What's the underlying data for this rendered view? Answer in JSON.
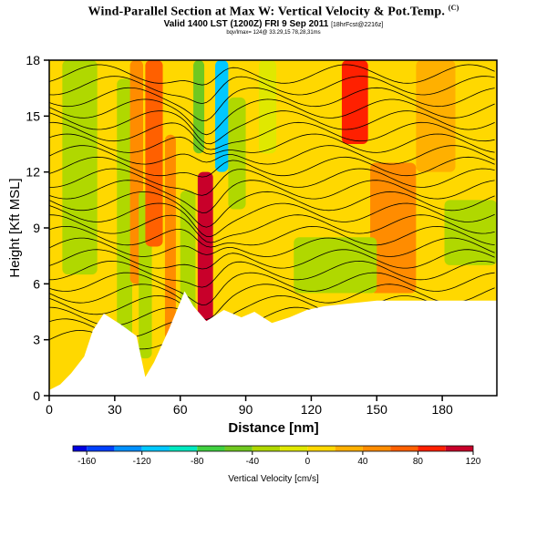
{
  "header": {
    "title": "Wind-Parallel Section at Max W: Vertical Velocity & Pot.Temp.",
    "title_mark": "(C)",
    "valid_line": "Valid 1400 LST (1200Z) FRI 9 Sep 2011",
    "forecast_tag": "[18hrFcst@2216z]",
    "info_line": "bqv/lmax= 124@ 33.29,15 78,28,31ms"
  },
  "chart_data": {
    "type": "heatmap",
    "title": "Wind-Parallel Section at Max W: Vertical Velocity & Pot.Temp.",
    "xlabel": "Distance [nm]",
    "ylabel": "Height [Kft MSL]",
    "xlim": [
      0,
      205
    ],
    "ylim": [
      0,
      18
    ],
    "x_ticks": [
      "0",
      "30",
      "60",
      "90",
      "120",
      "150",
      "180"
    ],
    "y_ticks": [
      "0",
      "3",
      "6",
      "9",
      "12",
      "15",
      "18"
    ],
    "colorbar": {
      "label": "Vertical Velocity [cm/s]",
      "tick_labels": [
        "-160",
        "-120",
        "-80",
        "-40",
        "0",
        "40",
        "80",
        "120"
      ],
      "range": [
        -170,
        120
      ],
      "levels": [
        -170,
        -160,
        -140,
        -120,
        -100,
        -80,
        -60,
        -40,
        -20,
        0,
        20,
        40,
        60,
        80,
        100,
        120
      ],
      "colors": [
        "#0000e0",
        "#0040ff",
        "#0090ff",
        "#00c8ff",
        "#00e8c0",
        "#40d040",
        "#70c820",
        "#b0d800",
        "#e0e800",
        "#ffd800",
        "#ffb000",
        "#ff8c00",
        "#ff6000",
        "#ff2000",
        "#c8002a"
      ]
    },
    "bands": [
      {
        "x": [
          6,
          22
        ],
        "y": [
          6.5,
          18
        ],
        "value": -25
      },
      {
        "x": [
          31,
          38
        ],
        "y": [
          1,
          17
        ],
        "value": -40
      },
      {
        "x": [
          37,
          43
        ],
        "y": [
          6,
          18
        ],
        "value": 55
      },
      {
        "x": [
          41,
          47
        ],
        "y": [
          2,
          11
        ],
        "value": -35
      },
      {
        "x": [
          44,
          52
        ],
        "y": [
          8,
          18
        ],
        "value": 75
      },
      {
        "x": [
          53,
          58
        ],
        "y": [
          3,
          14
        ],
        "value": 40
      },
      {
        "x": [
          60,
          67
        ],
        "y": [
          4,
          11
        ],
        "value": -40
      },
      {
        "x": [
          66,
          71
        ],
        "y": [
          13,
          18
        ],
        "value": -55
      },
      {
        "x": [
          68,
          75
        ],
        "y": [
          4,
          12
        ],
        "value": 100
      },
      {
        "x": [
          76,
          82
        ],
        "y": [
          12,
          18
        ],
        "value": -110
      },
      {
        "x": [
          82,
          90
        ],
        "y": [
          10,
          16
        ],
        "value": -25
      },
      {
        "x": [
          96,
          104
        ],
        "y": [
          13,
          18
        ],
        "value": -15
      },
      {
        "x": [
          134,
          146
        ],
        "y": [
          13.5,
          18
        ],
        "value": 90
      },
      {
        "x": [
          147,
          168
        ],
        "y": [
          5.5,
          12.5
        ],
        "value": 45
      },
      {
        "x": [
          168,
          186
        ],
        "y": [
          12,
          18
        ],
        "value": 35
      },
      {
        "x": [
          181,
          205
        ],
        "y": [
          7,
          10.5
        ],
        "value": -40
      },
      {
        "x": [
          112,
          150
        ],
        "y": [
          5.5,
          8.5
        ],
        "value": -30
      },
      {
        "x": [
          0,
          30
        ],
        "y": [
          0,
          5.5
        ],
        "value": 15
      }
    ],
    "terrain": [
      [
        0,
        0.3
      ],
      [
        5,
        0.6
      ],
      [
        10,
        1.2
      ],
      [
        16,
        2.1
      ],
      [
        20,
        3.5
      ],
      [
        25,
        4.4
      ],
      [
        33,
        3.8
      ],
      [
        40,
        3.2
      ],
      [
        44,
        1.0
      ],
      [
        48,
        1.8
      ],
      [
        55,
        3.6
      ],
      [
        62,
        5.6
      ],
      [
        66,
        4.8
      ],
      [
        72,
        4.0
      ],
      [
        80,
        4.6
      ],
      [
        88,
        4.2
      ],
      [
        94,
        4.5
      ],
      [
        102,
        3.9
      ],
      [
        110,
        4.2
      ],
      [
        118,
        4.6
      ],
      [
        126,
        4.8
      ],
      [
        134,
        4.9
      ],
      [
        150,
        5.1
      ],
      [
        170,
        5.1
      ],
      [
        190,
        5.1
      ],
      [
        205,
        5.1
      ]
    ],
    "theta_contours": {
      "count": 24,
      "y_start": 3.0,
      "y_step": 0.62
    },
    "grid": false
  }
}
